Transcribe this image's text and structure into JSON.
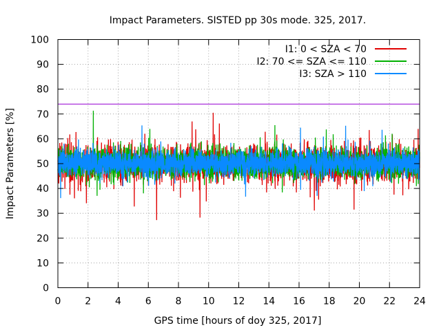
{
  "chart_data": {
    "type": "line",
    "title": "Impact Parameters. SISTED pp 30s mode. 325, 2017.",
    "xlabel": "GPS time [hours of doy 325, 2017]",
    "ylabel": "Impact Parameters [%]",
    "xlim": [
      0,
      24
    ],
    "ylim": [
      0,
      100
    ],
    "x_ticks": [
      0,
      2,
      4,
      6,
      8,
      10,
      12,
      14,
      16,
      18,
      20,
      22,
      24
    ],
    "y_ticks": [
      0,
      10,
      20,
      30,
      40,
      50,
      60,
      70,
      80,
      90,
      100
    ],
    "grid": true,
    "legend_position": "top-right",
    "threshold": {
      "value": 74,
      "color": "#9400d3"
    },
    "series": [
      {
        "name": "I1: 0 < SZA < 70",
        "color": "#e00000",
        "mean": 50,
        "typical_range": [
          43,
          58
        ],
        "extremes": [
          {
            "x": 1.1,
            "y": 36
          },
          {
            "x": 10.3,
            "y": 70.5
          },
          {
            "x": 8.9,
            "y": 67
          },
          {
            "x": 17.3,
            "y": 35.5
          },
          {
            "x": 22.3,
            "y": 37.5
          },
          {
            "x": 23.9,
            "y": 64
          }
        ]
      },
      {
        "name": "I2: 70 <= SZA <= 110",
        "color": "#00b000",
        "mean": 50,
        "typical_range": [
          44,
          57
        ],
        "extremes": [
          {
            "x": 2.6,
            "y": 37
          },
          {
            "x": 14.4,
            "y": 65.5
          },
          {
            "x": 6.1,
            "y": 64
          }
        ]
      },
      {
        "name": "I3: SZA > 110",
        "color": "#0a8aff",
        "mean": 50,
        "typical_range": [
          45,
          56
        ],
        "extremes": [
          {
            "x": 16.1,
            "y": 64.5
          },
          {
            "x": 17.2,
            "y": 37
          }
        ]
      }
    ]
  }
}
